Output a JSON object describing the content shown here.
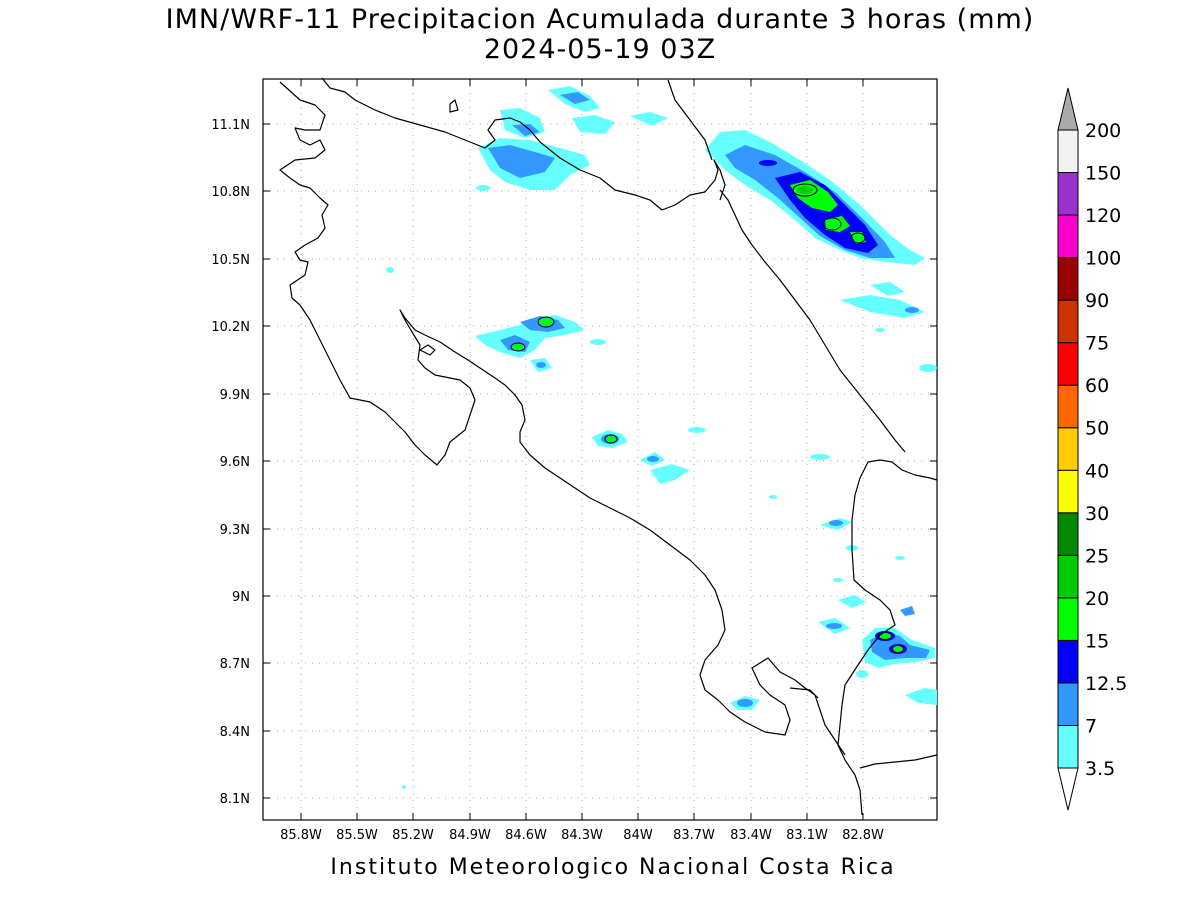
{
  "title": {
    "line1": "IMN/WRF-11 Precipitacion Acumulada durante 3 horas (mm)",
    "line2": "2024-05-19 03Z"
  },
  "footer": "Instituto Meteorologico Nacional Costa Rica",
  "axes": {
    "lat_labels": [
      "11.1N",
      "10.8N",
      "10.5N",
      "10.2N",
      "9.9N",
      "9.6N",
      "9.3N",
      "9N",
      "8.7N",
      "8.4N",
      "8.1N"
    ],
    "lon_labels": [
      "85.8W",
      "85.5W",
      "85.2W",
      "84.9W",
      "84.6W",
      "84.3W",
      "84W",
      "83.7W",
      "83.4W",
      "83.1W",
      "82.8W"
    ],
    "grid": "dotted"
  },
  "colorbar": {
    "levels": [
      "3.5",
      "7",
      "12.5",
      "15",
      "20",
      "25",
      "30",
      "40",
      "50",
      "60",
      "75",
      "90",
      "100",
      "120",
      "150",
      "200"
    ],
    "colors": [
      "#66ffff",
      "#3399ff",
      "#0000ff",
      "#00ff00",
      "#00cc00",
      "#008800",
      "#ffff00",
      "#ffcc00",
      "#ff6600",
      "#ff0000",
      "#cc3300",
      "#990000",
      "#ff00cc",
      "#9933cc",
      "#f2f2f2",
      "#aaaaaa"
    ],
    "orientation": "vertical",
    "placement": "right"
  },
  "colors": {
    "coast": "#000000",
    "grid": "#aaaaaa",
    "light": "#66ffff",
    "mid": "#3399ff",
    "heavy": "#0000ff",
    "green": "#00ff00",
    "darkgreen": "#00cc00"
  }
}
